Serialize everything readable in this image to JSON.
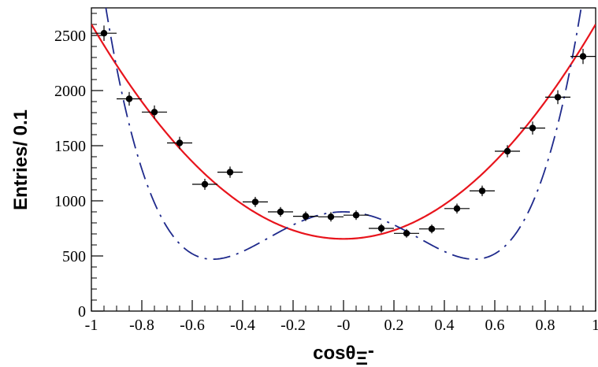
{
  "chart_data": {
    "type": "scatter",
    "title": "",
    "ylabel": "Entries/ 0.1",
    "xlabel": {
      "main": "cos",
      "symbol": "θ",
      "subscript": "Ξ",
      "superscript": "-"
    },
    "xlim": [
      -1,
      1
    ],
    "ylim": [
      0,
      2750
    ],
    "xticks": [
      "-1",
      "-0.8",
      "-0.6",
      "-0.4",
      "-0.2",
      "-0",
      "0.2",
      "0.4",
      "0.6",
      "0.8",
      "1"
    ],
    "xtick_values": [
      -1,
      -0.8,
      -0.6,
      -0.4,
      -0.2,
      0,
      0.2,
      0.4,
      0.6,
      0.8,
      1
    ],
    "yticks": [
      "0",
      "500",
      "1000",
      "1500",
      "2000",
      "2500"
    ],
    "ytick_values": [
      0,
      500,
      1000,
      1500,
      2000,
      2500
    ],
    "grid": false,
    "legend": "none",
    "series": [
      {
        "kind": "points_with_errors",
        "color": "#000000",
        "x": [
          -0.95,
          -0.85,
          -0.75,
          -0.65,
          -0.55,
          -0.45,
          -0.35,
          -0.25,
          -0.15,
          -0.05,
          0.05,
          0.15,
          0.25,
          0.35,
          0.45,
          0.55,
          0.65,
          0.75,
          0.85,
          0.95
        ],
        "y": [
          2520,
          1925,
          1805,
          1525,
          1150,
          1260,
          990,
          900,
          860,
          855,
          870,
          750,
          705,
          745,
          930,
          1090,
          1450,
          1660,
          1940,
          2310
        ],
        "xerr": 0.05,
        "yerr": [
          70,
          62,
          60,
          56,
          50,
          51,
          46,
          44,
          43,
          43,
          43,
          41,
          39,
          40,
          45,
          48,
          55,
          59,
          63,
          69
        ]
      },
      {
        "kind": "fit_curve",
        "style": "solid",
        "color": "#e8141c",
        "formula": "A*(1+alpha*x^2)",
        "A": 655,
        "alpha": 2.97
      },
      {
        "kind": "fit_curve",
        "style": "dash-dot",
        "color": "#1f2a8c",
        "formula": "A*(1+a2*x^2+a4*x^4)",
        "A": 900,
        "a2": -3.55,
        "a4": 6.6
      }
    ],
    "colors": {
      "axis": "#000000",
      "points": "#000000",
      "fit_solid": "#e8141c",
      "fit_dashdot": "#1f2a8c"
    }
  }
}
